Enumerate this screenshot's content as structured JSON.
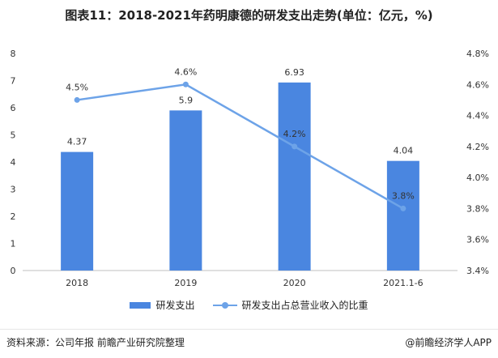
{
  "title": "图表11：2018-2021年药明康德的研发支出走势(单位：亿元，%)",
  "source": "资料来源：公司年报 前瞻产业研究院整理",
  "credit": "@前瞻经济学人APP",
  "colors": {
    "bar": "#4a86e0",
    "line": "#6da3e8",
    "axis_text": "#333333"
  },
  "chart_data": {
    "type": "bar+line",
    "categories": [
      "2018",
      "2019",
      "2020",
      "2021.1-6"
    ],
    "series": [
      {
        "name": "研发支出",
        "type": "bar",
        "axis": "left",
        "values": [
          4.37,
          5.9,
          6.93,
          4.04
        ],
        "labels": [
          "4.37",
          "5.9",
          "6.93",
          "4.04"
        ]
      },
      {
        "name": "研发支出占总营业收入的比重",
        "type": "line",
        "axis": "right",
        "values": [
          4.5,
          4.6,
          4.2,
          3.8
        ],
        "labels": [
          "4.5%",
          "4.6%",
          "4.2%",
          "3.8%"
        ]
      }
    ],
    "y_left": {
      "min": 0,
      "max": 8,
      "ticks": [
        "0",
        "1",
        "2",
        "3",
        "4",
        "5",
        "6",
        "7",
        "8"
      ]
    },
    "y_right": {
      "min": 3.4,
      "max": 4.8,
      "ticks": [
        "3.4%",
        "3.6%",
        "3.8%",
        "4.0%",
        "4.2%",
        "4.4%",
        "4.6%",
        "4.8%"
      ]
    },
    "legend_position": "bottom"
  }
}
